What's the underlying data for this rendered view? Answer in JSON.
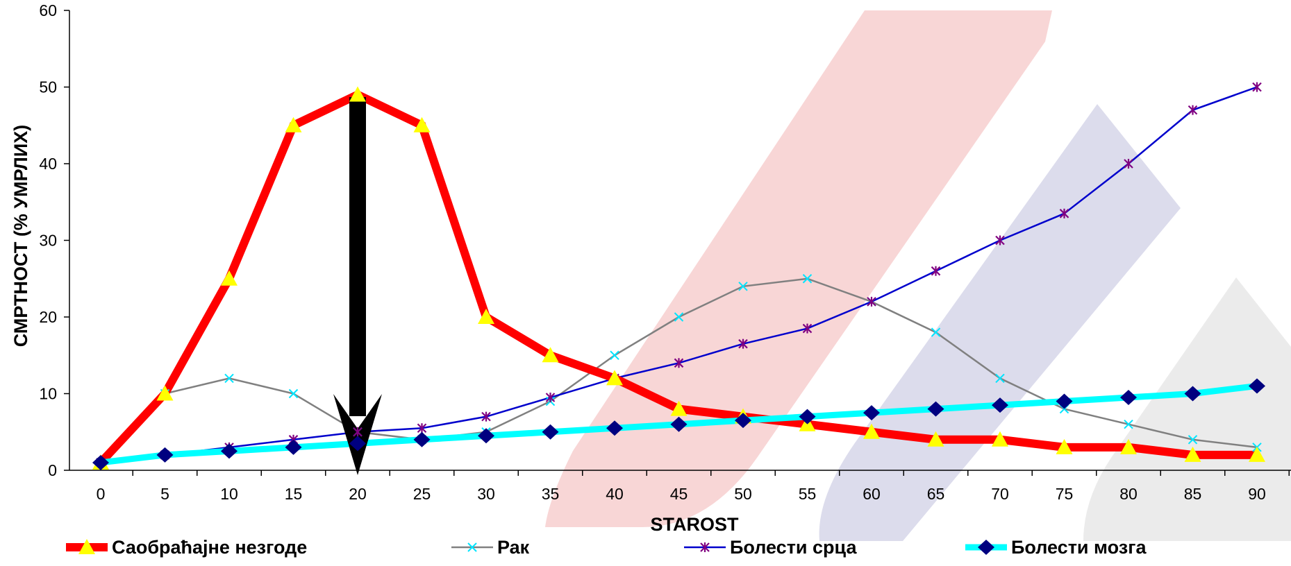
{
  "chart_data": {
    "type": "line",
    "xlabel": "STAROST",
    "ylabel": "СМРТНОСТ (% УМРЛИХ)",
    "x": [
      0,
      5,
      10,
      15,
      20,
      25,
      30,
      35,
      40,
      45,
      50,
      55,
      60,
      65,
      70,
      75,
      80,
      85,
      90
    ],
    "ylim": [
      0,
      60
    ],
    "yticks": [
      0,
      10,
      20,
      30,
      40,
      50,
      60
    ],
    "grid": false,
    "legend_position": "bottom",
    "annotation": "downward black arrow at age 20",
    "series": [
      {
        "name": "Саобраћајне незгоде",
        "color": "#ff0000",
        "marker": "triangle",
        "marker_color": "#ffff00",
        "values": [
          1,
          10,
          25,
          45,
          49,
          45,
          20,
          15,
          12,
          8,
          7,
          6,
          5,
          4,
          4,
          3,
          3,
          2,
          2
        ]
      },
      {
        "name": "Рак",
        "color": "#808080",
        "marker": "x",
        "marker_color": "#00e5ff",
        "values": [
          1,
          10,
          12,
          10,
          5,
          4,
          5,
          9,
          15,
          20,
          24,
          25,
          22,
          18,
          12,
          8,
          6,
          4,
          3
        ]
      },
      {
        "name": "Болести срца",
        "color": "#0000cc",
        "marker": "star",
        "marker_color": "#800080",
        "values": [
          1,
          2,
          3,
          4,
          5,
          5.5,
          7,
          9.5,
          12,
          14,
          16.5,
          18.5,
          22,
          26,
          30,
          33.5,
          40,
          47,
          50
        ]
      },
      {
        "name": "Болести мозга",
        "color": "#00ffff",
        "marker": "diamond",
        "marker_color": "#000080",
        "values": [
          1,
          2,
          2.5,
          3,
          3.5,
          4,
          4.5,
          5,
          5.5,
          6,
          6.5,
          7,
          7.5,
          8,
          8.5,
          9,
          9.5,
          10,
          11
        ]
      }
    ]
  }
}
